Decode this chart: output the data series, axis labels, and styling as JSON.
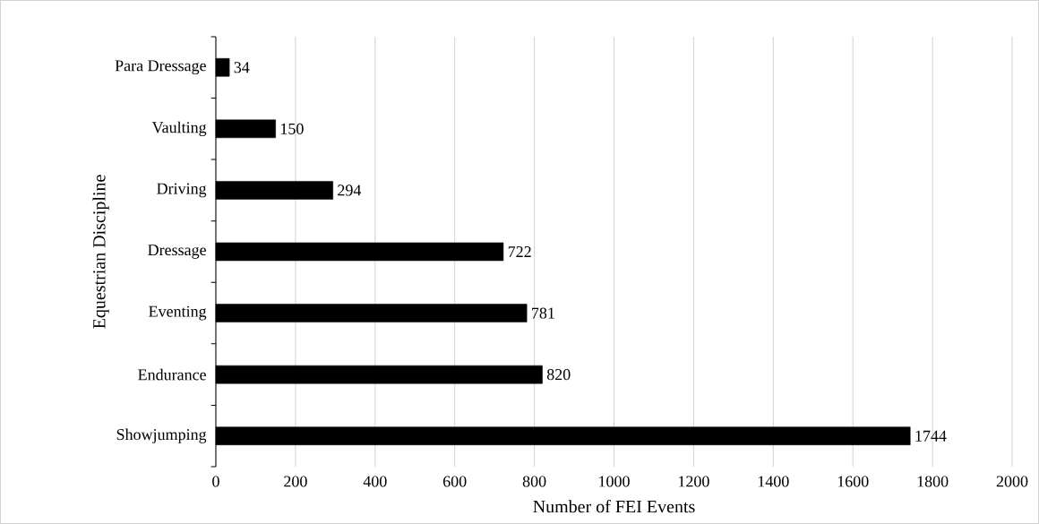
{
  "chart_data": {
    "type": "bar",
    "orientation": "horizontal",
    "xlabel": "Number of FEI Events",
    "ylabel": "Equestrian Discipline",
    "categories": [
      "Para Dressage",
      "Vaulting",
      "Driving",
      "Dressage",
      "Eventing",
      "Endurance",
      "Showjumping"
    ],
    "values": [
      34,
      150,
      294,
      722,
      781,
      820,
      1744
    ],
    "color": "#000000",
    "xlim": [
      0,
      2000
    ],
    "xticks": [
      0,
      200,
      400,
      600,
      800,
      1000,
      1200,
      1400,
      1600,
      1800,
      2000
    ],
    "grid": "x",
    "data_labels": true
  }
}
